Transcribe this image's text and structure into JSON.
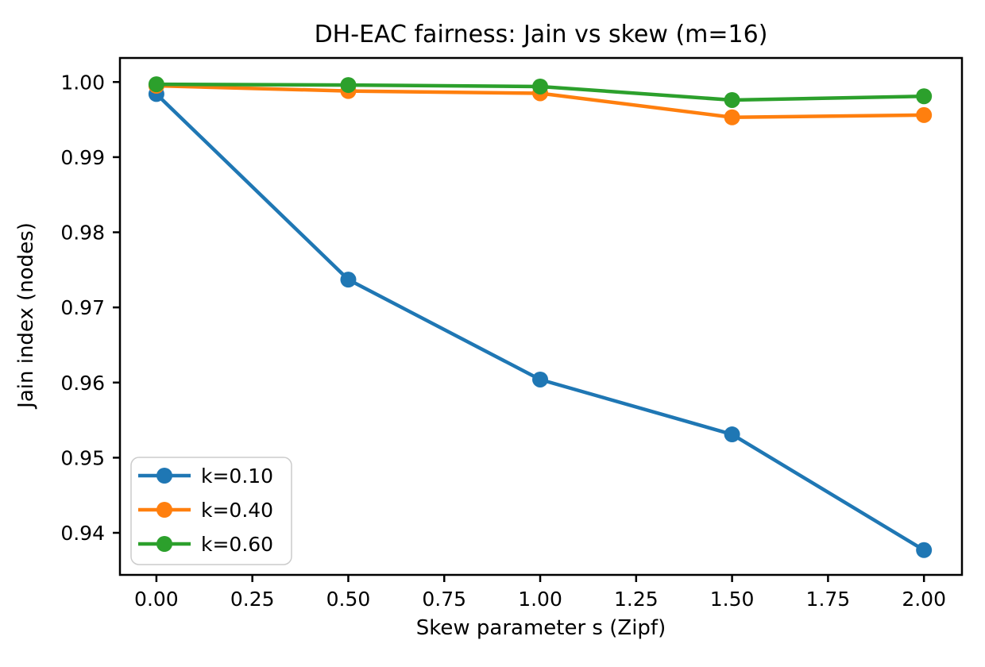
{
  "chart_data": {
    "type": "line",
    "title": "DH-EAC fairness: Jain vs skew (m=16)",
    "xlabel": "Skew parameter s (Zipf)",
    "ylabel": "Jain index (nodes)",
    "x": [
      0.0,
      0.5,
      1.0,
      1.5,
      2.0
    ],
    "series": [
      {
        "name": "k=0.10",
        "color": "#1f77b4",
        "values": [
          0.9984,
          0.9737,
          0.9604,
          0.9531,
          0.9377
        ]
      },
      {
        "name": "k=0.40",
        "color": "#ff7f0e",
        "values": [
          0.9995,
          0.9988,
          0.9985,
          0.9953,
          0.9956
        ]
      },
      {
        "name": "k=0.60",
        "color": "#2ca02c",
        "values": [
          0.9997,
          0.9996,
          0.9994,
          0.9976,
          0.9981
        ]
      }
    ],
    "x_ticks": [
      0.0,
      0.25,
      0.5,
      0.75,
      1.0,
      1.25,
      1.5,
      1.75,
      2.0
    ],
    "x_tick_labels": [
      "0.00",
      "0.25",
      "0.50",
      "0.75",
      "1.00",
      "1.25",
      "1.50",
      "1.75",
      "2.00"
    ],
    "y_ticks": [
      0.94,
      0.95,
      0.96,
      0.97,
      0.98,
      0.99,
      1.0
    ],
    "y_tick_labels": [
      "0.94",
      "0.95",
      "0.96",
      "0.97",
      "0.98",
      "0.99",
      "1.00"
    ],
    "xlim": [
      -0.095,
      2.099
    ],
    "ylim": [
      0.9344,
      1.0032
    ],
    "grid": false,
    "legend_position": "lower left",
    "marker": "circle",
    "axis_color": "#000000",
    "legend_border_color": "#cccccc",
    "background_color": "#ffffff"
  }
}
